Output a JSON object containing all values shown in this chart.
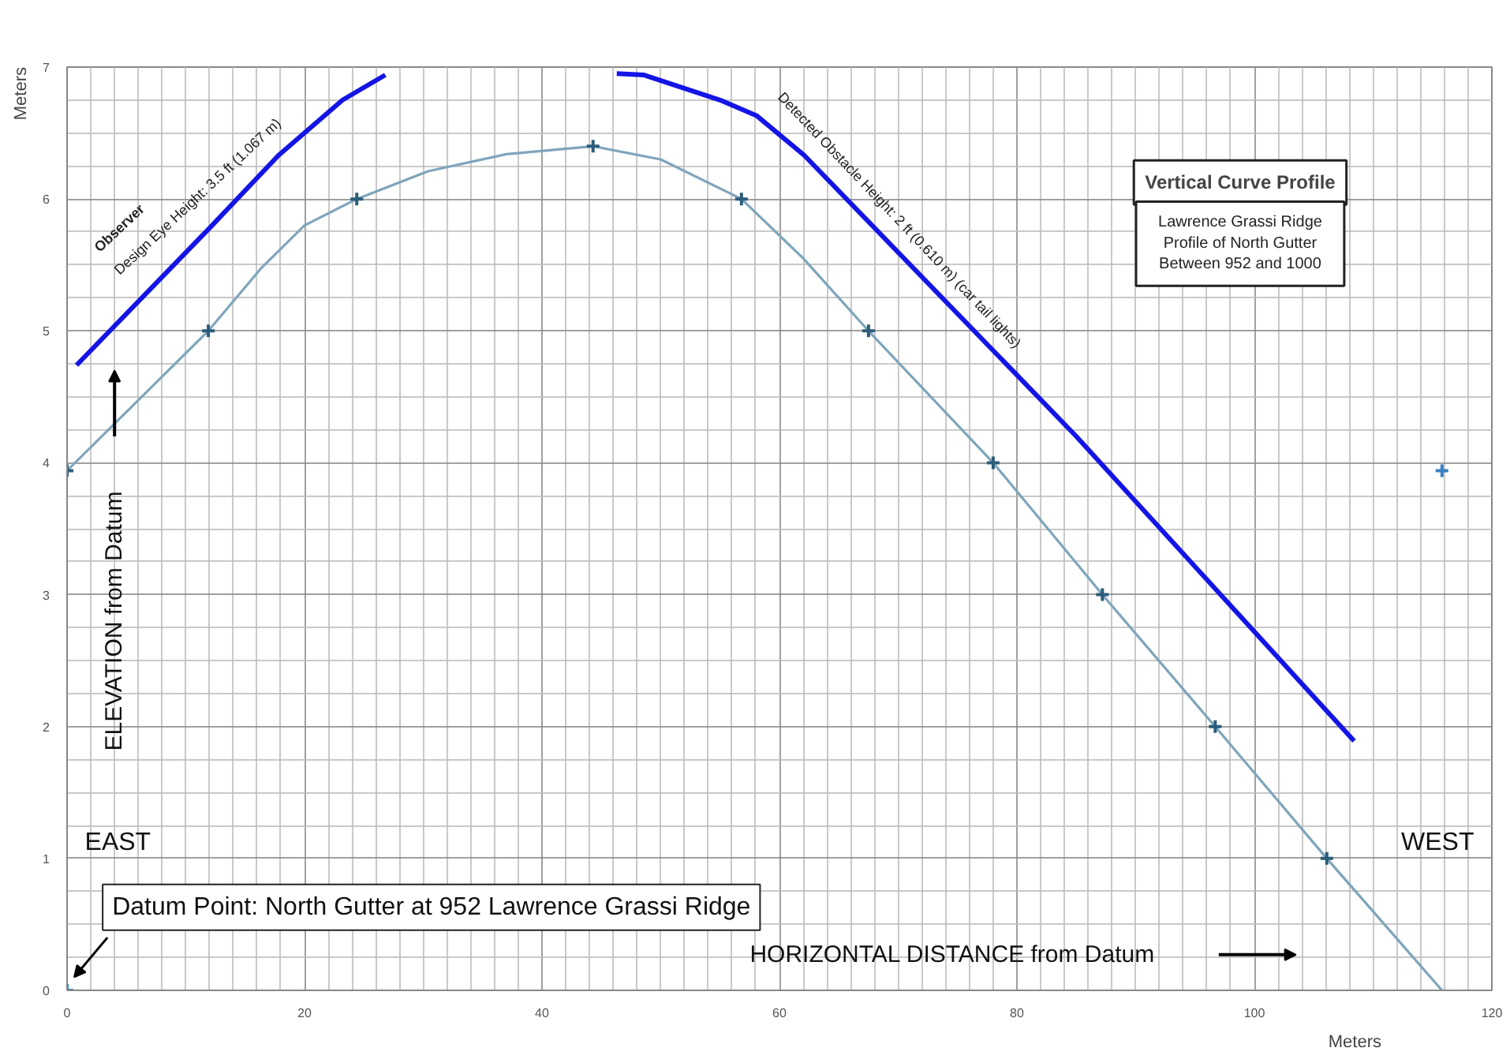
{
  "chart_data": {
    "type": "line",
    "title": "Vertical Curve Profile",
    "subtitle": "Lawrence Grassi Ridge\nProfile of North Gutter\nBetween 952 and 1000",
    "xlabel": "Meters",
    "ylabel": "Meters",
    "xlim": [
      0,
      120
    ],
    "ylim": [
      0,
      7
    ],
    "xticks": [
      0,
      20,
      40,
      60,
      80,
      100,
      120
    ],
    "yticks": [
      0,
      1,
      2,
      3,
      4,
      5,
      6,
      7
    ],
    "grid": true,
    "series": [
      {
        "color": "#7fa5bb",
        "marker": "none",
        "x": [
          0,
          11.9,
          16.3,
          20.0,
          24.4,
          30.4,
          37.0,
          44.3,
          50.0,
          56.8,
          62.0,
          67.5,
          78.0,
          87.2,
          96.7,
          106.1,
          115.8
        ],
        "values": [
          3.94,
          5,
          5.47,
          5.8,
          6,
          6.21,
          6.34,
          6.4,
          6.3,
          6,
          5.55,
          5,
          4,
          3,
          2,
          1,
          0
        ]
      },
      {
        "type": "scatter",
        "color": "#2b5d7a",
        "marker": "cross",
        "x": [
          0,
          11.9,
          24.4,
          44.3,
          56.8,
          67.5,
          78.0,
          87.2,
          96.7,
          106.1
        ],
        "values": [
          3.94,
          5,
          6,
          6.4,
          6,
          5,
          4,
          3,
          2,
          1
        ]
      },
      {
        "color": "#1414e6",
        "marker": "none",
        "x": [
          0.8,
          11.9,
          17.8,
          23.2,
          26.8
        ],
        "values": [
          4.74,
          5.77,
          6.33,
          6.75,
          6.94
        ]
      },
      {
        "color": "#1414e6",
        "marker": "none",
        "x": [
          46.3,
          48.6,
          55.0,
          58.1,
          62.1,
          85.0,
          108.4
        ],
        "values": [
          6.95,
          6.94,
          6.75,
          6.63,
          6.33,
          4.2,
          1.89
        ]
      },
      {
        "type": "scatter",
        "color": "#3a7fc0",
        "marker": "cross",
        "x": [
          0,
          115.8
        ],
        "values": [
          0,
          3.94
        ]
      }
    ],
    "annotations": [
      "Observer",
      "Design Eye Height: 3.5 ft (1.067 m)",
      "Detected Obstacle Height: 2 ft (0.610 m) (car tail lights)",
      "ELEVATION from Datum",
      "EAST",
      "WEST",
      "Datum Point: North Gutter at 952 Lawrence Grassi Ridge",
      "HORIZONTAL DISTANCE from Datum"
    ]
  }
}
